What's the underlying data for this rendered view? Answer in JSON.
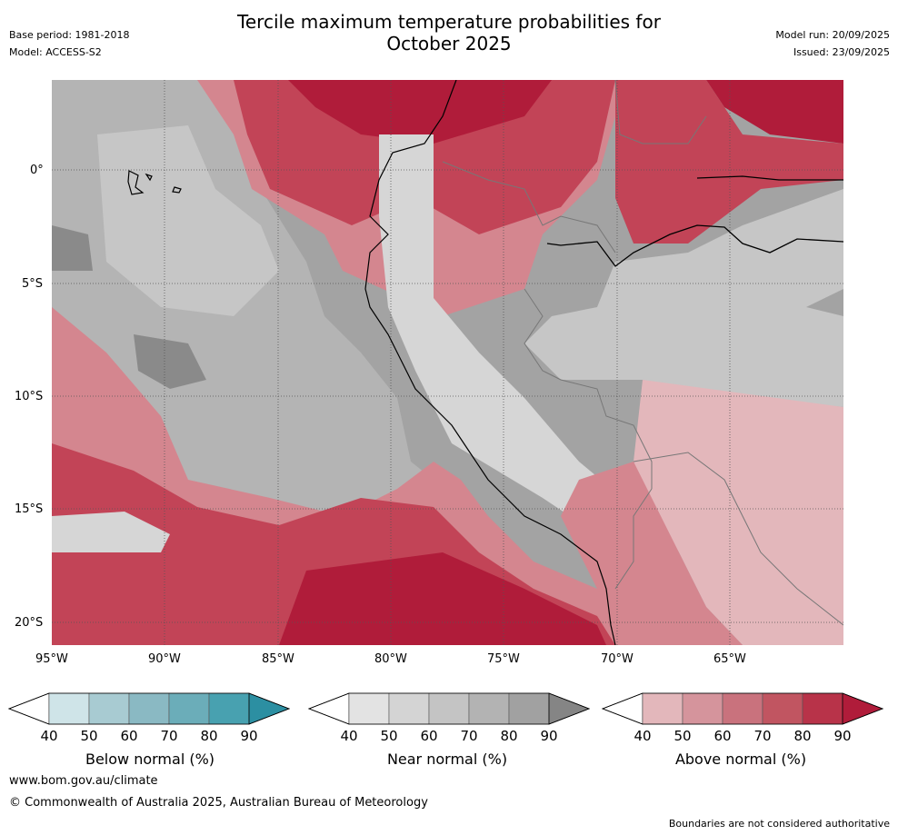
{
  "header": {
    "title_line1": "Tercile maximum temperature probabilities for",
    "title_line2": "October 2025",
    "base_period": "Base period: 1981-2018",
    "model": "Model: ACCESS-S2",
    "model_run": "Model run: 20/09/2025",
    "issued": "Issued: 23/09/2025"
  },
  "map": {
    "lat_labels": [
      "0°",
      "5°S",
      "10°S",
      "15°S",
      "20°S"
    ],
    "lon_labels": [
      "95°W",
      "90°W",
      "85°W",
      "80°W",
      "75°W",
      "70°W",
      "65°W"
    ],
    "colors": {
      "ocean_gray_dark": "#8a8a8a",
      "ocean_gray": "#a3a3a3",
      "near_light": "#d6d6d6",
      "warm_dark": "#b01c3a",
      "warm_mid": "#c24457",
      "warm_light": "#d4868f",
      "warm_pale": "#e3b7bb"
    }
  },
  "colorbars": {
    "levels": [
      "40",
      "50",
      "60",
      "70",
      "80",
      "90"
    ],
    "below": {
      "label": "Below normal (%)",
      "colors": [
        "#ffffff",
        "#cfe4e8",
        "#a8cbd2",
        "#8ab9c3",
        "#6badb9",
        "#48a1b0",
        "#2c8fa2"
      ]
    },
    "near": {
      "label": "Near normal (%)",
      "colors": [
        "#ffffff",
        "#e3e3e3",
        "#d4d4d4",
        "#c4c4c4",
        "#b3b3b3",
        "#a1a1a1",
        "#858585"
      ]
    },
    "above": {
      "label": "Above normal (%)",
      "colors": [
        "#ffffff",
        "#e3b7bb",
        "#d5949c",
        "#c9727d",
        "#c15561",
        "#b83349",
        "#b01c3a"
      ]
    }
  },
  "footer": {
    "website": "www.bom.gov.au/climate",
    "copyright": "© Commonwealth of Australia 2025, Australian Bureau of Meteorology",
    "disclaimer": "Boundaries are not considered authoritative"
  }
}
